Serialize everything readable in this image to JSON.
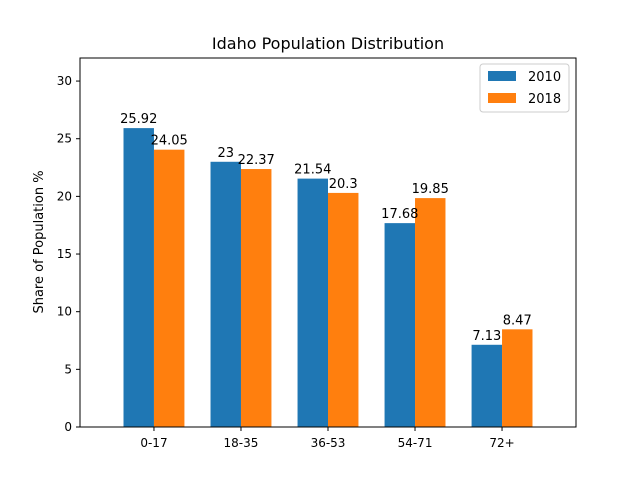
{
  "chart_data": {
    "type": "bar",
    "title": "Idaho Population Distribution",
    "xlabel": "",
    "ylabel": "Share of Population %",
    "categories": [
      "0-17",
      "18-35",
      "36-53",
      "54-71",
      "72+"
    ],
    "series": [
      {
        "name": "2010",
        "color": "#1f77b4",
        "values": [
          25.92,
          23.0,
          21.54,
          17.68,
          7.13
        ]
      },
      {
        "name": "2018",
        "color": "#ff7f0e",
        "values": [
          24.05,
          22.37,
          20.3,
          19.85,
          8.47
        ]
      }
    ],
    "ylim": [
      0,
      32
    ],
    "yticks": [
      0,
      5,
      10,
      15,
      20,
      25,
      30
    ],
    "grid": false,
    "legend_position": "top-right"
  }
}
